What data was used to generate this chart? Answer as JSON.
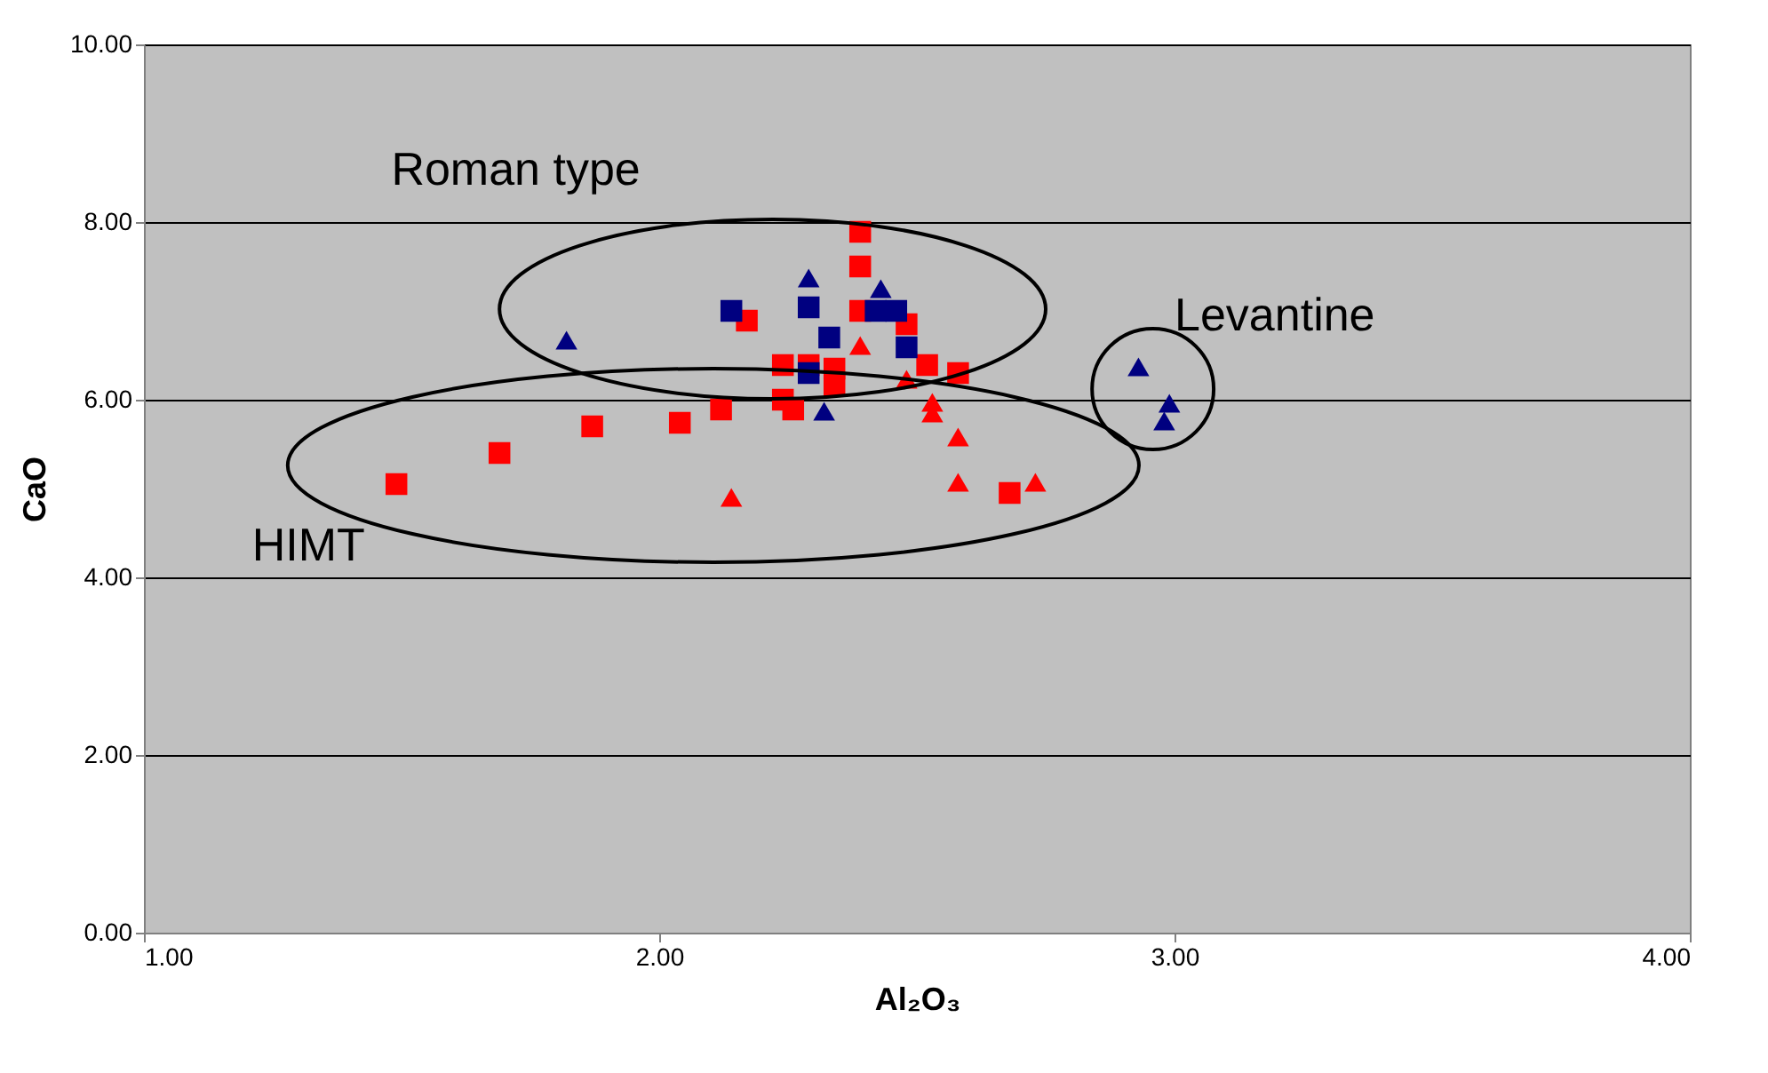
{
  "chart_data": {
    "type": "scatter",
    "xlabel": "Al₂O₃",
    "ylabel": "CaO",
    "xlim": [
      1,
      4
    ],
    "ylim": [
      0,
      10
    ],
    "xticks": [
      {
        "value": 1,
        "label": "1.00"
      },
      {
        "value": 2,
        "label": "2.00"
      },
      {
        "value": 3,
        "label": "3.00"
      },
      {
        "value": 4,
        "label": "4.00"
      }
    ],
    "yticks": [
      {
        "value": 0,
        "label": "0.00"
      },
      {
        "value": 2,
        "label": "2.00"
      },
      {
        "value": 4,
        "label": "4.00"
      },
      {
        "value": 6,
        "label": "6.00"
      },
      {
        "value": 8,
        "label": "8.00"
      },
      {
        "value": 10,
        "label": "10.00"
      }
    ],
    "grid": "y",
    "series": [
      {
        "color": "#ff0000",
        "marker": "square",
        "x": [
          1.49,
          1.69,
          1.87,
          2.04,
          2.12,
          2.17,
          2.24,
          2.24,
          2.26,
          2.29,
          2.34,
          2.34,
          2.39,
          2.39,
          2.39,
          2.48,
          2.52,
          2.58,
          2.68
        ],
        "values": [
          5.05,
          5.4,
          5.7,
          5.74,
          5.89,
          6.89,
          6.39,
          6.0,
          5.89,
          6.39,
          6.35,
          6.16,
          7.89,
          7.5,
          7.0,
          6.85,
          6.39,
          6.3,
          4.95
        ]
      },
      {
        "color": "#ff0000",
        "marker": "triangle",
        "x": [
          2.14,
          2.39,
          2.48,
          2.53,
          2.53,
          2.58,
          2.58,
          2.73
        ],
        "values": [
          4.9,
          6.61,
          6.23,
          5.97,
          5.85,
          5.58,
          5.07,
          5.07
        ]
      },
      {
        "color": "#000080",
        "marker": "square",
        "x": [
          2.14,
          2.29,
          2.33,
          2.29,
          2.42,
          2.46,
          2.48
        ],
        "values": [
          7.0,
          7.04,
          6.7,
          6.3,
          7.0,
          7.0,
          6.59
        ]
      },
      {
        "color": "#000080",
        "marker": "triangle",
        "x": [
          1.82,
          2.29,
          2.43,
          2.32,
          2.93,
          2.99,
          2.98
        ],
        "values": [
          6.67,
          7.37,
          7.25,
          5.87,
          6.37,
          5.96,
          5.76
        ]
      }
    ],
    "annotations": [
      "Roman type",
      "Levantine",
      "HIMT"
    ]
  }
}
